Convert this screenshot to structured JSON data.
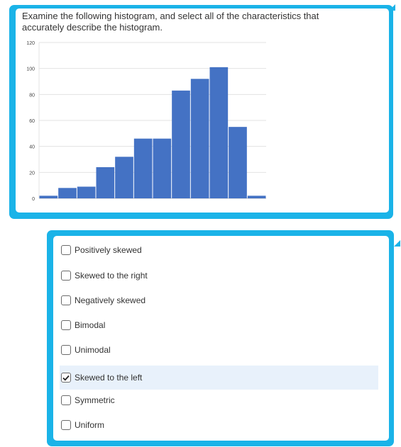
{
  "question": {
    "text": "Examine the following histogram, and select all of the characteristics that accurately describe the histogram."
  },
  "chart_data": {
    "type": "bar",
    "title": "",
    "xlabel": "",
    "ylabel": "",
    "ylim": [
      0,
      120
    ],
    "yticks": [
      "0",
      "20",
      "40",
      "60",
      "80",
      "100",
      "120"
    ],
    "values": [
      2,
      8,
      9,
      24,
      32,
      46,
      46,
      83,
      92,
      101,
      55,
      2
    ],
    "bar_color": "#4472c4",
    "grid": true
  },
  "options": [
    {
      "label": "Positively skewed",
      "checked": false
    },
    {
      "label": "Skewed to the right",
      "checked": false
    },
    {
      "label": "Negatively skewed",
      "checked": false
    },
    {
      "label": "Bimodal",
      "checked": false
    },
    {
      "label": "Unimodal",
      "checked": false
    },
    {
      "label": "Skewed to the left",
      "checked": true
    },
    {
      "label": "Symmetric",
      "checked": false
    },
    {
      "label": "Uniform",
      "checked": false
    }
  ],
  "colors": {
    "frame": "#1ab3e8",
    "selected_row": "#e8f1fb"
  }
}
